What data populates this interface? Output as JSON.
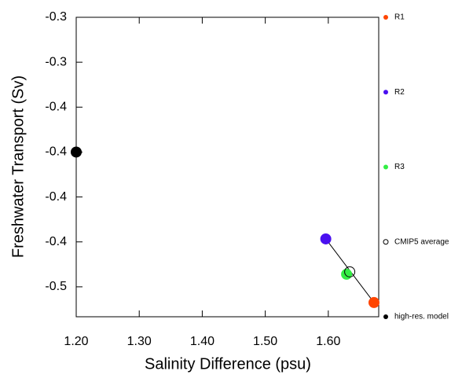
{
  "chart_data": {
    "type": "scatter",
    "x_label": "Salinity Difference (psu)",
    "y_label": "Freshwater Transport (Sv)",
    "xlim": [
      1.2,
      1.68
    ],
    "xticks": [
      {
        "value": 1.2,
        "label": "1.20"
      },
      {
        "value": 1.3,
        "label": "1.30"
      },
      {
        "value": 1.4,
        "label": "1.40"
      },
      {
        "value": 1.5,
        "label": "1.50"
      },
      {
        "value": 1.6,
        "label": "1.60"
      }
    ],
    "ylim": [
      -0.5,
      -0.3
    ],
    "yticks": [
      {
        "value": -0.3,
        "label": "-0.3"
      },
      {
        "value": -0.33,
        "label": "-0.3"
      },
      {
        "value": -0.36,
        "label": "-0.4"
      },
      {
        "value": -0.39,
        "label": "-0.4"
      },
      {
        "value": -0.42,
        "label": "-0.4"
      },
      {
        "value": -0.45,
        "label": "-0.4"
      },
      {
        "value": -0.48,
        "label": "-0.5"
      }
    ],
    "fit": {
      "color": "#000000",
      "x": [
        1.596,
        1.6725
      ],
      "y": [
        -0.448,
        -0.4905
      ]
    },
    "series": [
      {
        "name": "R1",
        "color": "#ff4500",
        "x": [
          1.6725
        ],
        "values": [
          -0.4905
        ]
      },
      {
        "name": "R2",
        "color": "#4a10f0",
        "x": [
          1.596
        ],
        "values": [
          -0.448
        ]
      },
      {
        "name": "R3",
        "color": "#33ee44",
        "x": [
          1.629
        ],
        "values": [
          -0.4716
        ]
      },
      {
        "name": "CMIP5 average",
        "color": "#000000",
        "hollow": true,
        "x": [
          1.634
        ],
        "values": [
          -0.47
        ]
      },
      {
        "name": "high-res. model",
        "color": "#000000",
        "x": [
          1.2
        ],
        "values": [
          -0.39
        ]
      }
    ]
  }
}
